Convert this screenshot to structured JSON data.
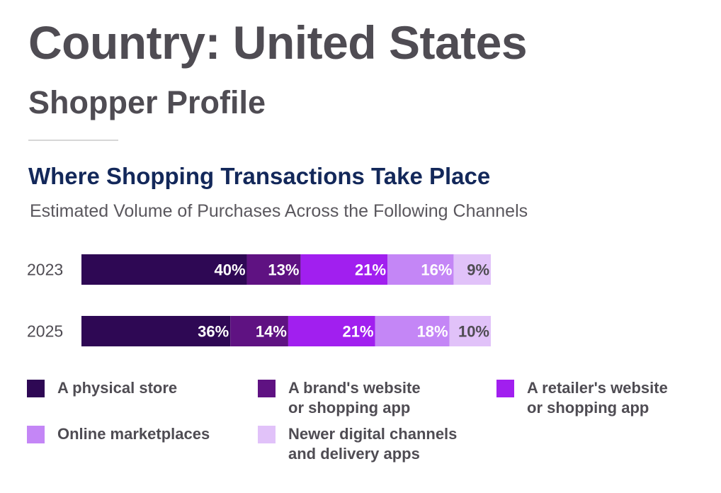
{
  "header": {
    "title": "Country: United States",
    "subtitle": "Shopper Profile"
  },
  "chart_data": {
    "type": "bar",
    "stacked": true,
    "orientation": "horizontal",
    "title": "Where Shopping Transactions Take Place",
    "subtitle": "Estimated Volume of Purchases Across the Following Channels",
    "xlabel": "",
    "ylabel": "",
    "categories": [
      "2023",
      "2025"
    ],
    "value_unit": "%",
    "xlim": [
      0,
      100
    ],
    "grid": false,
    "legend_position": "bottom",
    "series": [
      {
        "name": "A physical store",
        "values": [
          40,
          36
        ],
        "color": "#2e0854"
      },
      {
        "name": "A brand's website\nor shopping app",
        "values": [
          13,
          14
        ],
        "color": "#5f1282"
      },
      {
        "name": "A retailer's website\nor shopping app",
        "values": [
          21,
          21
        ],
        "color": "#a11fef"
      },
      {
        "name": "Online marketplaces",
        "values": [
          16,
          18
        ],
        "color": "#c486f6"
      },
      {
        "name": "Newer digital channels\nand delivery apps",
        "values": [
          9,
          10
        ],
        "color": "#e1c2f9"
      }
    ],
    "label_colors": [
      "#ffffff",
      "#ffffff",
      "#ffffff",
      "#ffffff",
      "#4f4c53"
    ]
  }
}
